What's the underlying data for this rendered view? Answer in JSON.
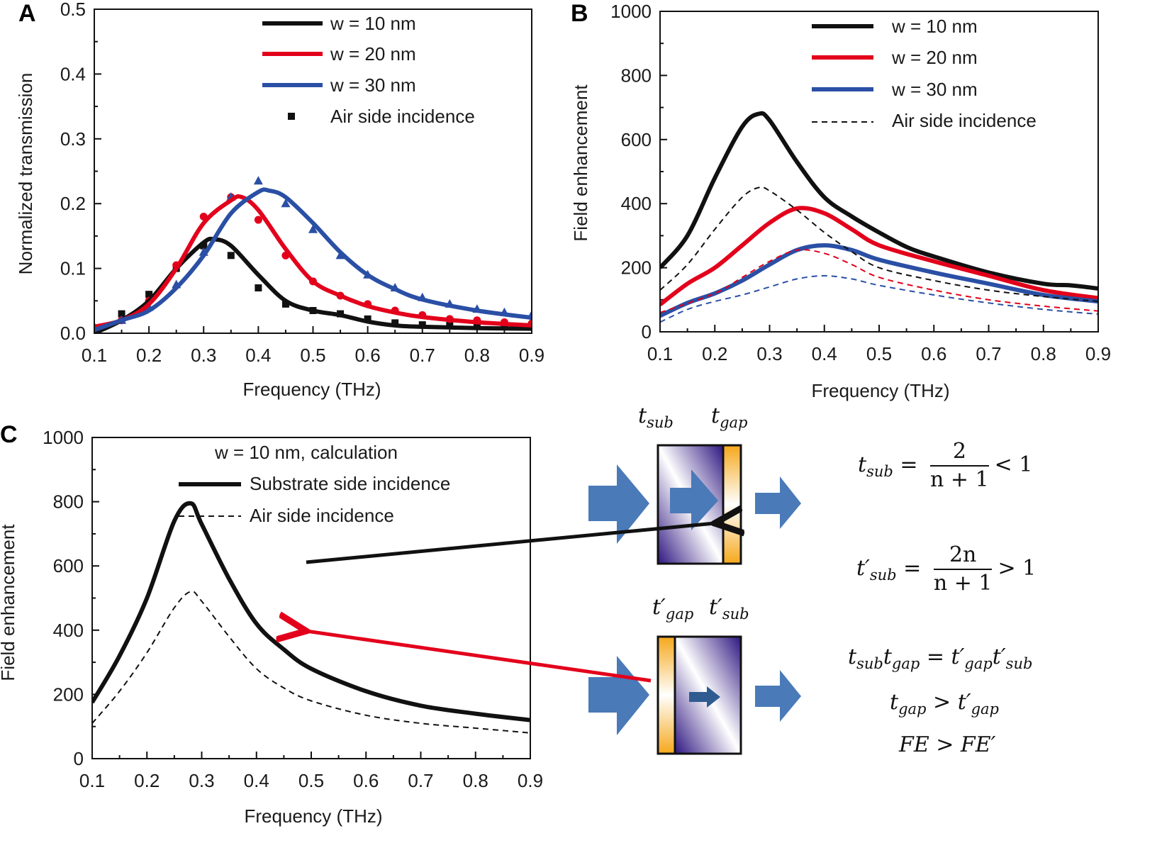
{
  "panel_labels": [
    "A",
    "B",
    "C"
  ],
  "colors": {
    "black": "#111111",
    "red": "#e3001b",
    "blue": "#2a4fa5",
    "arrow_blue": "#4a7ab8",
    "orange": "#f5a81c",
    "purple": "#3b1c8c"
  },
  "chart_data": [
    {
      "panel": "A",
      "type": "line",
      "xlabel": "Frequency (THz)",
      "ylabel": "Normalized transmission",
      "xlim": [
        0.1,
        0.9
      ],
      "ylim": [
        0.0,
        0.5
      ],
      "xticks": [
        "0.1",
        "0.2",
        "0.3",
        "0.4",
        "0.5",
        "0.6",
        "0.7",
        "0.8",
        "0.9"
      ],
      "yticks": [
        "0.0",
        "0.1",
        "0.2",
        "0.3",
        "0.4",
        "0.5"
      ],
      "legend_placement": "top-right",
      "series": [
        {
          "name": "w = 10 nm",
          "color": "#111111",
          "style": "solid",
          "points": [
            [
              0.1,
              0.0
            ],
            [
              0.15,
              0.02
            ],
            [
              0.2,
              0.05
            ],
            [
              0.25,
              0.1
            ],
            [
              0.3,
              0.14
            ],
            [
              0.32,
              0.145
            ],
            [
              0.35,
              0.135
            ],
            [
              0.4,
              0.09
            ],
            [
              0.45,
              0.05
            ],
            [
              0.5,
              0.035
            ],
            [
              0.55,
              0.028
            ],
            [
              0.6,
              0.018
            ],
            [
              0.65,
              0.012
            ],
            [
              0.7,
              0.01
            ],
            [
              0.8,
              0.008
            ],
            [
              0.9,
              0.007
            ]
          ]
        },
        {
          "name": "w = 20 nm",
          "color": "#e3001b",
          "style": "solid",
          "points": [
            [
              0.1,
              0.01
            ],
            [
              0.15,
              0.02
            ],
            [
              0.2,
              0.045
            ],
            [
              0.25,
              0.1
            ],
            [
              0.3,
              0.17
            ],
            [
              0.35,
              0.205
            ],
            [
              0.37,
              0.21
            ],
            [
              0.4,
              0.19
            ],
            [
              0.45,
              0.13
            ],
            [
              0.5,
              0.08
            ],
            [
              0.55,
              0.058
            ],
            [
              0.6,
              0.042
            ],
            [
              0.65,
              0.032
            ],
            [
              0.7,
              0.025
            ],
            [
              0.8,
              0.017
            ],
            [
              0.9,
              0.012
            ]
          ]
        },
        {
          "name": "w = 30 nm",
          "color": "#2a4fa5",
          "style": "solid",
          "points": [
            [
              0.1,
              0.005
            ],
            [
              0.15,
              0.02
            ],
            [
              0.2,
              0.035
            ],
            [
              0.25,
              0.07
            ],
            [
              0.3,
              0.12
            ],
            [
              0.35,
              0.185
            ],
            [
              0.4,
              0.218
            ],
            [
              0.42,
              0.22
            ],
            [
              0.45,
              0.21
            ],
            [
              0.5,
              0.17
            ],
            [
              0.55,
              0.125
            ],
            [
              0.6,
              0.09
            ],
            [
              0.65,
              0.068
            ],
            [
              0.7,
              0.052
            ],
            [
              0.8,
              0.035
            ],
            [
              0.9,
              0.024
            ]
          ]
        },
        {
          "name": "Air side incidence",
          "color": "#111111",
          "style": "markers",
          "marker": "square",
          "points": [
            [
              0.1,
              0.005
            ],
            [
              0.15,
              0.03
            ],
            [
              0.2,
              0.06
            ],
            [
              0.25,
              0.1
            ],
            [
              0.3,
              0.135
            ],
            [
              0.35,
              0.12
            ],
            [
              0.4,
              0.07
            ],
            [
              0.45,
              0.045
            ],
            [
              0.5,
              0.035
            ],
            [
              0.55,
              0.03
            ],
            [
              0.6,
              0.022
            ],
            [
              0.65,
              0.016
            ],
            [
              0.7,
              0.013
            ],
            [
              0.75,
              0.012
            ],
            [
              0.8,
              0.011
            ],
            [
              0.85,
              0.01
            ],
            [
              0.9,
              0.01
            ]
          ]
        },
        {
          "color": "#e3001b",
          "style": "markers",
          "marker": "circle",
          "points": [
            [
              0.1,
              0.005
            ],
            [
              0.15,
              0.02
            ],
            [
              0.2,
              0.05
            ],
            [
              0.25,
              0.105
            ],
            [
              0.3,
              0.18
            ],
            [
              0.35,
              0.21
            ],
            [
              0.4,
              0.175
            ],
            [
              0.45,
              0.12
            ],
            [
              0.5,
              0.08
            ],
            [
              0.55,
              0.058
            ],
            [
              0.6,
              0.045
            ],
            [
              0.65,
              0.035
            ],
            [
              0.7,
              0.028
            ],
            [
              0.75,
              0.022
            ],
            [
              0.8,
              0.02
            ],
            [
              0.85,
              0.017
            ],
            [
              0.9,
              0.015
            ]
          ]
        },
        {
          "color": "#2a4fa5",
          "style": "markers",
          "marker": "triangle",
          "points": [
            [
              0.1,
              0.01
            ],
            [
              0.15,
              0.02
            ],
            [
              0.2,
              0.04
            ],
            [
              0.25,
              0.075
            ],
            [
              0.3,
              0.125
            ],
            [
              0.35,
              0.21
            ],
            [
              0.4,
              0.235
            ],
            [
              0.45,
              0.2
            ],
            [
              0.5,
              0.16
            ],
            [
              0.55,
              0.12
            ],
            [
              0.6,
              0.09
            ],
            [
              0.65,
              0.07
            ],
            [
              0.7,
              0.055
            ],
            [
              0.75,
              0.045
            ],
            [
              0.8,
              0.037
            ],
            [
              0.85,
              0.032
            ],
            [
              0.9,
              0.028
            ]
          ]
        }
      ]
    },
    {
      "panel": "B",
      "type": "line",
      "xlabel": "Frequency (THz)",
      "ylabel": "Field enhancement",
      "xlim": [
        0.1,
        0.9
      ],
      "ylim": [
        0,
        1000
      ],
      "xticks": [
        "0.1",
        "0.2",
        "0.3",
        "0.4",
        "0.5",
        "0.6",
        "0.7",
        "0.8",
        "0.9"
      ],
      "yticks": [
        "0",
        "200",
        "400",
        "600",
        "800",
        "1000"
      ],
      "legend_placement": "top-right",
      "series": [
        {
          "name": "w = 10 nm",
          "color": "#111111",
          "style": "solid",
          "points": [
            [
              0.1,
              200
            ],
            [
              0.15,
              300
            ],
            [
              0.2,
              480
            ],
            [
              0.25,
              640
            ],
            [
              0.28,
              680
            ],
            [
              0.3,
              660
            ],
            [
              0.35,
              530
            ],
            [
              0.4,
              420
            ],
            [
              0.45,
              360
            ],
            [
              0.5,
              310
            ],
            [
              0.55,
              265
            ],
            [
              0.6,
              235
            ],
            [
              0.7,
              185
            ],
            [
              0.8,
              150
            ],
            [
              0.85,
              145
            ],
            [
              0.9,
              135
            ]
          ]
        },
        {
          "name": "w = 20 nm",
          "color": "#e3001b",
          "style": "solid",
          "points": [
            [
              0.1,
              85
            ],
            [
              0.15,
              150
            ],
            [
              0.2,
              200
            ],
            [
              0.25,
              270
            ],
            [
              0.3,
              340
            ],
            [
              0.35,
              385
            ],
            [
              0.4,
              370
            ],
            [
              0.45,
              320
            ],
            [
              0.5,
              270
            ],
            [
              0.6,
              220
            ],
            [
              0.7,
              175
            ],
            [
              0.8,
              130
            ],
            [
              0.9,
              105
            ]
          ]
        },
        {
          "name": "w = 30 nm",
          "color": "#2a4fa5",
          "style": "solid",
          "points": [
            [
              0.1,
              50
            ],
            [
              0.15,
              90
            ],
            [
              0.2,
              120
            ],
            [
              0.25,
              160
            ],
            [
              0.3,
              210
            ],
            [
              0.35,
              255
            ],
            [
              0.4,
              270
            ],
            [
              0.45,
              255
            ],
            [
              0.5,
              225
            ],
            [
              0.6,
              185
            ],
            [
              0.7,
              150
            ],
            [
              0.8,
              115
            ],
            [
              0.9,
              95
            ]
          ]
        },
        {
          "name": "Air side incidence",
          "color": "#111111",
          "style": "dashed",
          "points": [
            [
              0.1,
              130
            ],
            [
              0.15,
              210
            ],
            [
              0.2,
              320
            ],
            [
              0.25,
              420
            ],
            [
              0.28,
              450
            ],
            [
              0.3,
              440
            ],
            [
              0.35,
              380
            ],
            [
              0.4,
              310
            ],
            [
              0.45,
              250
            ],
            [
              0.5,
              200
            ],
            [
              0.6,
              160
            ],
            [
              0.7,
              130
            ],
            [
              0.8,
              110
            ],
            [
              0.9,
              95
            ]
          ]
        },
        {
          "color": "#e3001b",
          "style": "dashed",
          "points": [
            [
              0.1,
              60
            ],
            [
              0.2,
              120
            ],
            [
              0.25,
              170
            ],
            [
              0.3,
              220
            ],
            [
              0.35,
              255
            ],
            [
              0.4,
              245
            ],
            [
              0.45,
              210
            ],
            [
              0.5,
              170
            ],
            [
              0.6,
              130
            ],
            [
              0.7,
              100
            ],
            [
              0.8,
              80
            ],
            [
              0.9,
              65
            ]
          ]
        },
        {
          "color": "#2a4fa5",
          "style": "dashed",
          "points": [
            [
              0.1,
              30
            ],
            [
              0.15,
              70
            ],
            [
              0.2,
              95
            ],
            [
              0.25,
              115
            ],
            [
              0.3,
              140
            ],
            [
              0.35,
              165
            ],
            [
              0.4,
              175
            ],
            [
              0.45,
              165
            ],
            [
              0.5,
              145
            ],
            [
              0.6,
              115
            ],
            [
              0.7,
              90
            ],
            [
              0.8,
              70
            ],
            [
              0.9,
              55
            ]
          ]
        }
      ]
    },
    {
      "panel": "C",
      "type": "line",
      "title": "w = 10 nm, calculation",
      "xlabel": "Frequency (THz)",
      "ylabel": "Field enhancement",
      "xlim": [
        0.1,
        0.9
      ],
      "ylim": [
        0,
        1000
      ],
      "xticks": [
        "0.1",
        "0.2",
        "0.3",
        "0.4",
        "0.5",
        "0.6",
        "0.7",
        "0.8",
        "0.9"
      ],
      "yticks": [
        "0",
        "200",
        "400",
        "600",
        "800",
        "1000"
      ],
      "legend_placement": "top-right",
      "series": [
        {
          "name": "Substrate side incidence",
          "color": "#111111",
          "style": "solid",
          "points": [
            [
              0.1,
              175
            ],
            [
              0.15,
              320
            ],
            [
              0.2,
              500
            ],
            [
              0.25,
              740
            ],
            [
              0.28,
              795
            ],
            [
              0.3,
              730
            ],
            [
              0.35,
              560
            ],
            [
              0.4,
              420
            ],
            [
              0.45,
              340
            ],
            [
              0.5,
              280
            ],
            [
              0.6,
              210
            ],
            [
              0.7,
              165
            ],
            [
              0.8,
              140
            ],
            [
              0.9,
              120
            ]
          ]
        },
        {
          "name": "Air side incidence",
          "color": "#111111",
          "style": "dashed",
          "points": [
            [
              0.1,
              110
            ],
            [
              0.15,
              210
            ],
            [
              0.2,
              330
            ],
            [
              0.25,
              470
            ],
            [
              0.28,
              520
            ],
            [
              0.3,
              490
            ],
            [
              0.35,
              380
            ],
            [
              0.4,
              280
            ],
            [
              0.45,
              220
            ],
            [
              0.5,
              180
            ],
            [
              0.6,
              135
            ],
            [
              0.7,
              110
            ],
            [
              0.8,
              95
            ],
            [
              0.9,
              80
            ]
          ]
        }
      ]
    }
  ],
  "diagram": {
    "top_labels": {
      "t": "t",
      "sub": "sub",
      "gap": "gap"
    },
    "bottom_labels": {
      "t": "t′",
      "gap": "gap",
      "sub": "sub"
    },
    "eq1": {
      "lhs_t": "t",
      "lhs_sub": "sub",
      "eq": "=",
      "num": "2",
      "den": "n + 1",
      "rel": "< 1"
    },
    "eq2": {
      "lhs_t": "t′",
      "lhs_sub": "sub",
      "eq": "=",
      "num": "2n",
      "den": "n + 1",
      "rel": "> 1"
    },
    "eq3": {
      "t1": "t",
      "s1": "sub",
      "t2": "t",
      "s2": "gap",
      "eq": "=",
      "t3": "t′",
      "s3": "gap",
      "t4": "t′",
      "s4": "sub"
    },
    "eq4": {
      "t1": "t",
      "s1": "gap",
      "rel": ">",
      "t2": "t′",
      "s2": "gap"
    },
    "eq5": "FE > FE′"
  }
}
